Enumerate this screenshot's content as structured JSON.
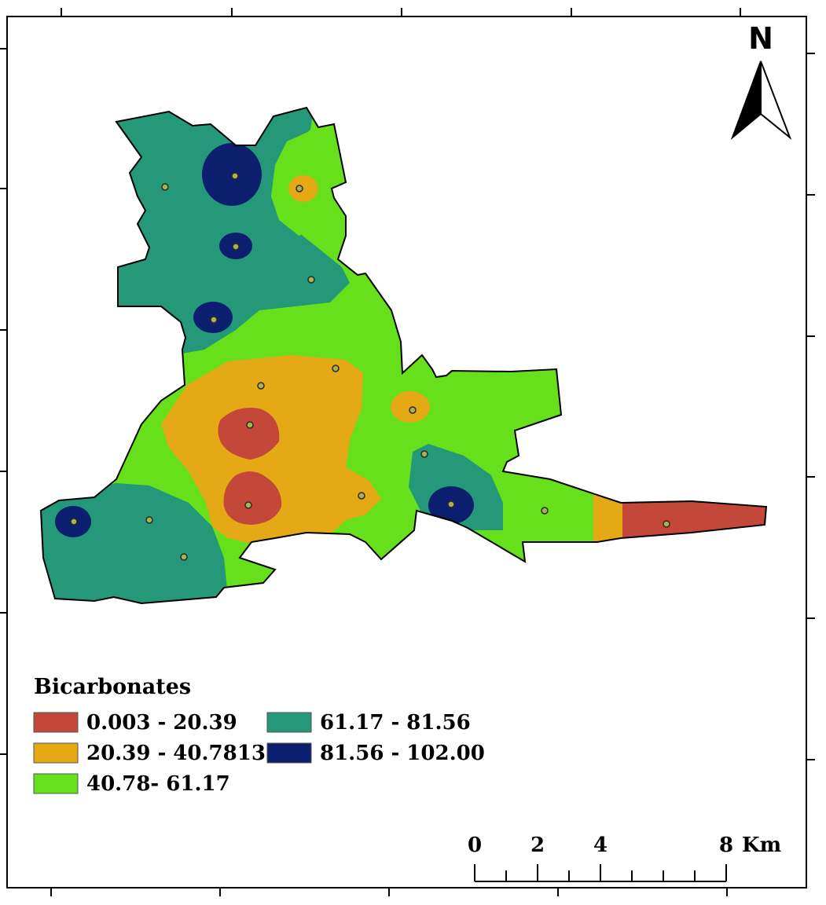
{
  "legend": {
    "title": "Bicarbonates",
    "classes": [
      {
        "label": "0.003 - 20.39",
        "color": "#c3483a"
      },
      {
        "label": "20.39 - 40.7813",
        "color": "#e6a916"
      },
      {
        "label": "40.78- 61.17",
        "color": "#66e01a"
      },
      {
        "label": "61.17 - 81.56",
        "color": "#249878"
      },
      {
        "label": "81.56 - 102.00",
        "color": "#0c1f6e"
      }
    ]
  },
  "north_arrow": {
    "letter": "N"
  },
  "scale_bar": {
    "ticks": [
      "0",
      "2",
      "4",
      "8"
    ],
    "unit": "Km"
  },
  "colors": {
    "frame": "#000000",
    "boundary": "#000000",
    "sample_point": "#3a3a3a",
    "background": "#ffffff"
  }
}
